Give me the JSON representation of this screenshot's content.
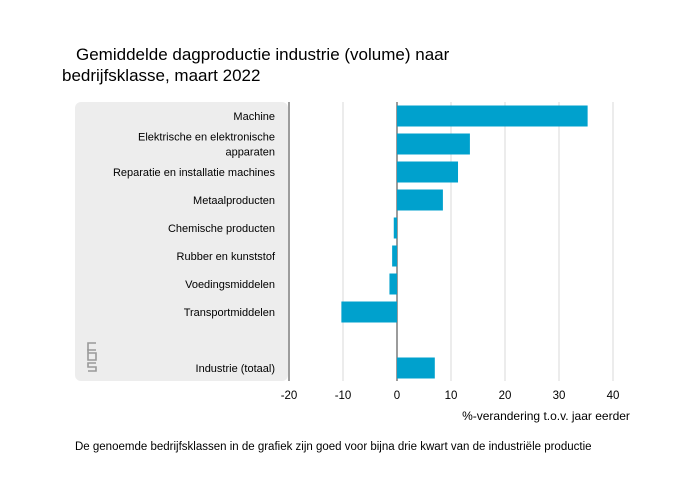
{
  "chart_data": {
    "type": "bar",
    "orientation": "horizontal",
    "title_line1": "Gemiddelde dagproductie industrie (volume) naar",
    "title_line2": "bedrijfsklasse, maart 2022",
    "categories": [
      [
        "Machine"
      ],
      [
        "Elektrische en elektronische",
        "apparaten"
      ],
      [
        "Reparatie en installatie machines"
      ],
      [
        "Metaalproducten"
      ],
      [
        "Chemische producten"
      ],
      [
        "Rubber en kunststof"
      ],
      [
        "Voedingsmiddelen"
      ],
      [
        "Transportmiddelen"
      ],
      [
        ""
      ],
      [
        "Industrie (totaal)"
      ]
    ],
    "values": [
      35.3,
      13.5,
      11.3,
      8.5,
      -0.6,
      -0.9,
      -1.4,
      -10.3,
      null,
      7.0
    ],
    "xlabel": "%-verandering t.o.v. jaar eerder",
    "xlim": [
      -20,
      40
    ],
    "xticks": [
      -20,
      -10,
      0,
      10,
      20,
      30,
      40
    ],
    "bar_color": "#00a1cd",
    "grid": true,
    "logo": "cbs"
  },
  "footnote": "De genoemde bedrijfsklassen in de grafiek zijn goed voor bijna drie kwart van de industriële productie"
}
